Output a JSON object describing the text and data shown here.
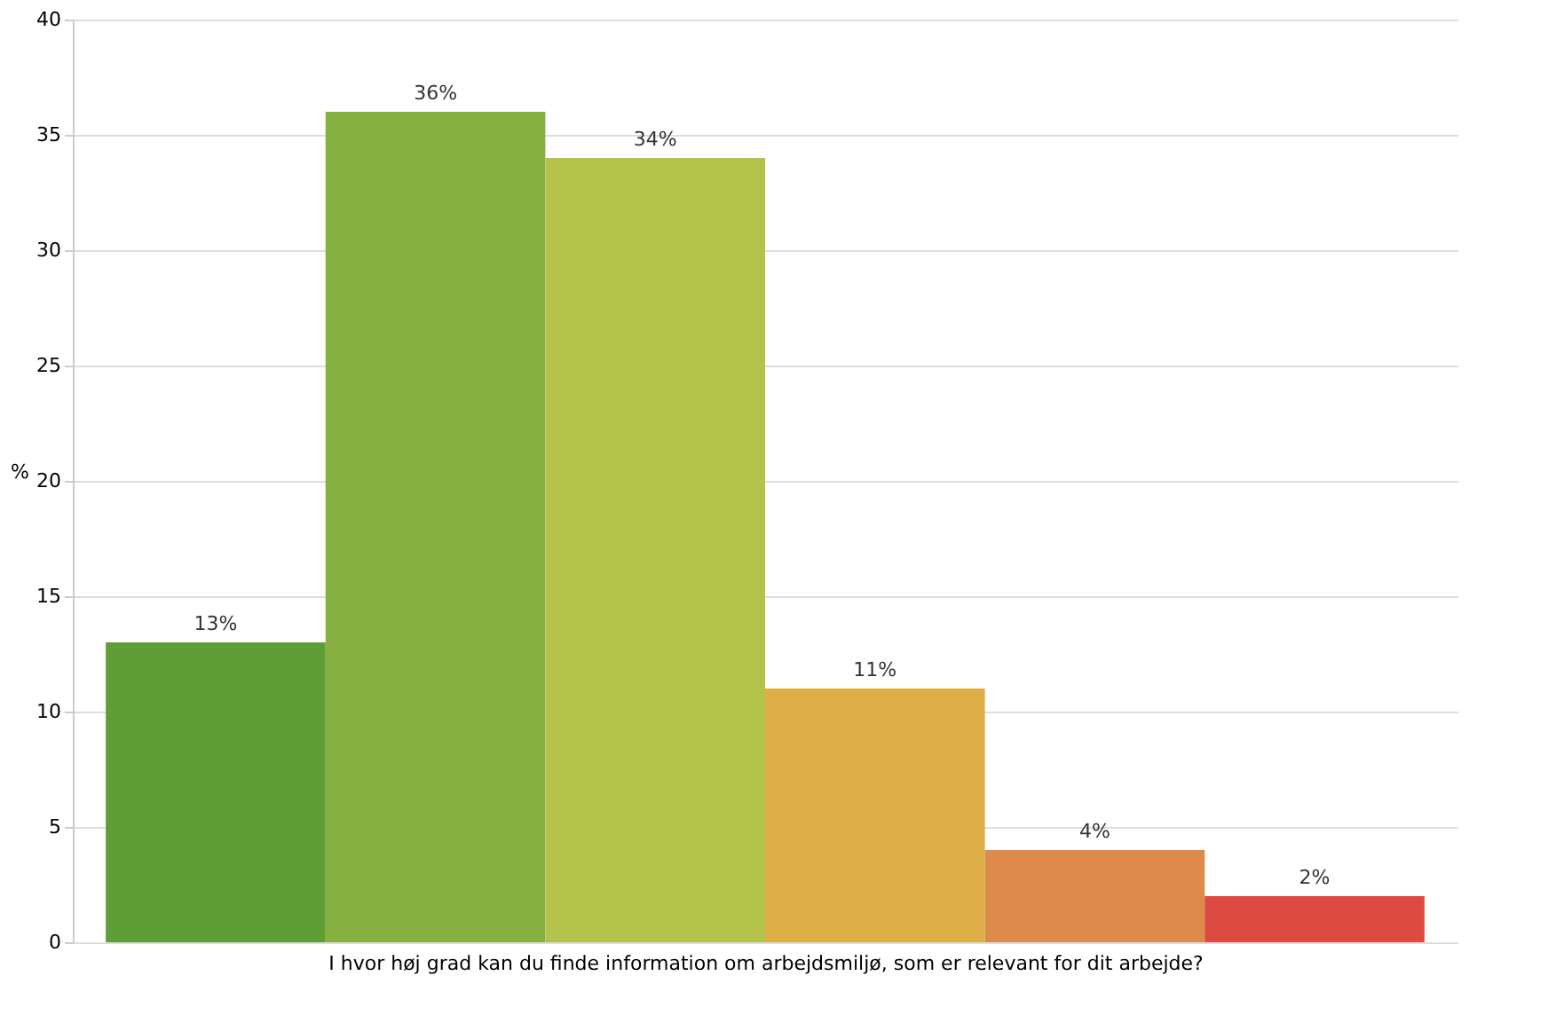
{
  "chart_data": {
    "type": "bar",
    "xlabel": "I hvor høj grad kan du finde information om arbejdsmiljø, som er relevant for dit arbejde?",
    "ylabel": "%",
    "categories": [
      null,
      null,
      null,
      null,
      null,
      null
    ],
    "values": [
      13,
      36,
      34,
      11,
      4,
      2
    ],
    "colors": [
      "#5f9e35",
      "#86b040",
      "#b2c24a",
      "#dcae45",
      "#de8a4a",
      "#dc4a42"
    ],
    "value_labels": [
      "13%",
      "36%",
      "34%",
      "11%",
      "4%",
      "2%"
    ],
    "ylim": [
      0,
      40
    ],
    "yticks": [
      0,
      5,
      10,
      15,
      20,
      25,
      30,
      35,
      40
    ],
    "grid": "y"
  }
}
